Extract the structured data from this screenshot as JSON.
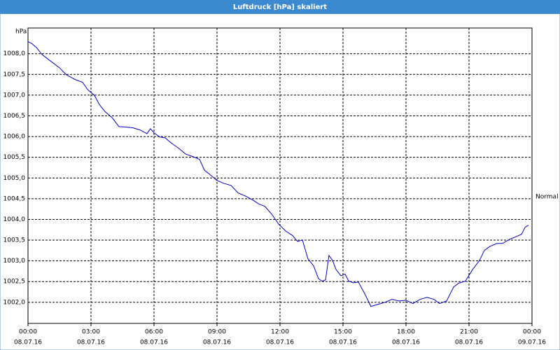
{
  "chart_data": {
    "type": "line",
    "title": "Luftdruck [hPa] skaliert",
    "y_label": "hPa",
    "x": [
      0,
      0.17,
      0.4,
      0.67,
      1,
      1.5,
      1.83,
      2.27,
      2.6,
      2.83,
      3.17,
      3.4,
      3.67,
      4,
      4.33,
      4.67,
      5,
      5.33,
      5.67,
      5.83,
      6,
      6.27,
      6.53,
      6.83,
      7.17,
      7.5,
      7.83,
      8.17,
      8.4,
      8.67,
      9,
      9.33,
      9.67,
      10,
      10.33,
      10.67,
      11,
      11.27,
      11.6,
      11.93,
      12.27,
      12.6,
      12.83,
      13.07,
      13.33,
      13.6,
      13.83,
      14,
      14.17,
      14.33,
      14.5,
      14.67,
      14.9,
      15.1,
      15.27,
      15.5,
      15.73,
      16,
      16.33,
      16.67,
      17,
      17.33,
      17.67,
      18,
      18.33,
      18.67,
      19,
      19.33,
      19.6,
      19.93,
      20.27,
      20.5,
      20.83,
      21.17,
      21.5,
      21.73,
      22,
      22.33,
      22.6,
      22.93,
      23.27,
      23.5,
      23.67,
      23.83
    ],
    "series": [
      {
        "name": "Normal",
        "color": "#0000c8",
        "values": [
          1008.29,
          1008.25,
          1008.15,
          1007.98,
          1007.85,
          1007.66,
          1007.49,
          1007.37,
          1007.31,
          1007.14,
          1006.99,
          1006.77,
          1006.6,
          1006.46,
          1006.24,
          1006.23,
          1006.21,
          1006.16,
          1006.07,
          1006.19,
          1006.09,
          1005.99,
          1005.97,
          1005.84,
          1005.72,
          1005.58,
          1005.52,
          1005.45,
          1005.19,
          1005.08,
          1004.94,
          1004.87,
          1004.82,
          1004.64,
          1004.57,
          1004.48,
          1004.37,
          1004.32,
          1004.13,
          1003.89,
          1003.72,
          1003.61,
          1003.47,
          1003.5,
          1003.05,
          1002.88,
          1002.57,
          1002.51,
          1002.54,
          1003.13,
          1003.01,
          1002.79,
          1002.64,
          1002.68,
          1002.51,
          1002.47,
          1002.49,
          1002.24,
          1001.9,
          1001.95,
          1002.0,
          1002.07,
          1002.03,
          1002.05,
          1001.97,
          1002.07,
          1002.12,
          1002.07,
          1001.97,
          1002.03,
          1002.37,
          1002.46,
          1002.51,
          1002.79,
          1003.01,
          1003.25,
          1003.35,
          1003.42,
          1003.42,
          1003.52,
          1003.59,
          1003.64,
          1003.81,
          1003.86
        ]
      }
    ],
    "xlim": [
      0,
      24
    ],
    "xticks": [
      {
        "value": 0,
        "label": "00:00",
        "date": "08.07.16"
      },
      {
        "value": 3,
        "label": "03:00",
        "date": "08.07.16"
      },
      {
        "value": 6,
        "label": "06:00",
        "date": "08.07.16"
      },
      {
        "value": 9,
        "label": "09:00",
        "date": "08.07.16"
      },
      {
        "value": 12,
        "label": "12:00",
        "date": "08.07.16"
      },
      {
        "value": 15,
        "label": "15:00",
        "date": "08.07.16"
      },
      {
        "value": 18,
        "label": "18:00",
        "date": "08.07.16"
      },
      {
        "value": 21,
        "label": "21:00",
        "date": "08.07.16"
      },
      {
        "value": 24,
        "label": "00:00",
        "date": "09.07.16"
      }
    ],
    "ylim": [
      1001.49,
      1008.62
    ],
    "yticks": [
      {
        "value": 1002,
        "label": "1002,0"
      },
      {
        "value": 1002.5,
        "label": "1002,5"
      },
      {
        "value": 1003,
        "label": "1003,0"
      },
      {
        "value": 1003.5,
        "label": "1003,5"
      },
      {
        "value": 1004,
        "label": "1004,0"
      },
      {
        "value": 1004.5,
        "label": "1004,5"
      },
      {
        "value": 1005,
        "label": "1005,0"
      },
      {
        "value": 1005.5,
        "label": "1005,5"
      },
      {
        "value": 1006,
        "label": "1006,0"
      },
      {
        "value": 1006.5,
        "label": "1006,5"
      },
      {
        "value": 1007,
        "label": "1007,0"
      },
      {
        "value": 1007.5,
        "label": "1007,5"
      },
      {
        "value": 1008,
        "label": "1008,0"
      }
    ],
    "grid": true
  }
}
